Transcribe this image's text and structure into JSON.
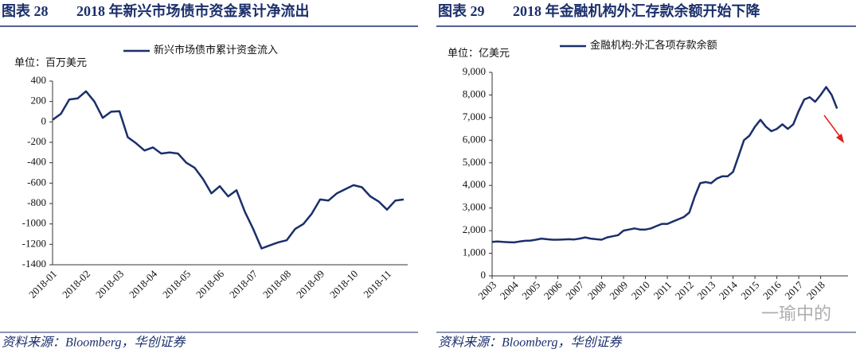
{
  "watermark": "一瑜中的",
  "chart_data": [
    {
      "type": "line",
      "figure_label": "图表 28",
      "title": "2018 年新兴市场债市资金累计净流出",
      "unit_label": "单位：百万美元",
      "source": "资料来源：Bloomberg，华创证券",
      "categories": [
        "2018-01",
        null,
        null,
        null,
        "2018-02",
        null,
        null,
        null,
        "2018-03",
        null,
        null,
        null,
        "2018-04",
        null,
        null,
        null,
        "2018-05",
        null,
        null,
        null,
        "2018-06",
        null,
        null,
        null,
        "2018-07",
        null,
        null,
        null,
        "2018-08",
        null,
        null,
        null,
        "2018-09",
        null,
        null,
        null,
        "2018-10",
        null,
        null,
        null,
        "2018-11",
        null,
        null
      ],
      "series": [
        {
          "name": "新兴市场债市累计资金流入",
          "color": "#1b2f6b",
          "values": [
            20,
            80,
            220,
            230,
            300,
            200,
            40,
            100,
            105,
            -150,
            -210,
            -280,
            -250,
            -310,
            -300,
            -310,
            -400,
            -450,
            -560,
            -700,
            -630,
            -730,
            -670,
            -880,
            -1050,
            -1240,
            -1210,
            -1180,
            -1160,
            -1050,
            -1000,
            -900,
            -760,
            -770,
            -700,
            -660,
            -620,
            -640,
            -730,
            -780,
            -860,
            -770,
            -760
          ]
        }
      ],
      "ylim": [
        -1400,
        400
      ],
      "yticks": [
        -1400,
        -1200,
        -1000,
        -800,
        -600,
        -400,
        -200,
        0,
        200,
        400
      ]
    },
    {
      "type": "line",
      "figure_label": "图表 29",
      "title": "2018 年金融机构外汇存款余额开始下降",
      "unit_label": "单位：亿美元",
      "source": "资料来源：Bloomberg，华创证券",
      "x": [
        2003,
        2003.25,
        2003.5,
        2003.75,
        2004,
        2004.25,
        2004.5,
        2004.75,
        2005,
        2005.25,
        2005.5,
        2005.75,
        2006,
        2006.25,
        2006.5,
        2006.75,
        2007,
        2007.25,
        2007.5,
        2007.75,
        2008,
        2008.25,
        2008.5,
        2008.75,
        2009,
        2009.25,
        2009.5,
        2009.75,
        2010,
        2010.25,
        2010.5,
        2010.75,
        2011,
        2011.25,
        2011.5,
        2011.75,
        2012,
        2012.25,
        2012.5,
        2012.75,
        2013,
        2013.25,
        2013.5,
        2013.75,
        2014,
        2014.25,
        2014.5,
        2014.75,
        2015,
        2015.25,
        2015.5,
        2015.75,
        2016,
        2016.25,
        2016.5,
        2016.75,
        2017,
        2017.25,
        2017.5,
        2017.75,
        2018,
        2018.25,
        2018.5,
        2018.75
      ],
      "series": [
        {
          "name": "金融机构:外汇各项存款余额",
          "color": "#1b2f6b",
          "values": [
            1500,
            1520,
            1500,
            1490,
            1480,
            1520,
            1550,
            1560,
            1600,
            1650,
            1620,
            1600,
            1600,
            1610,
            1620,
            1610,
            1650,
            1700,
            1650,
            1620,
            1600,
            1700,
            1750,
            1800,
            2000,
            2050,
            2100,
            2050,
            2050,
            2100,
            2200,
            2300,
            2300,
            2400,
            2500,
            2600,
            2800,
            3500,
            4100,
            4150,
            4100,
            4300,
            4400,
            4400,
            4600,
            5300,
            6000,
            6200,
            6600,
            6900,
            6600,
            6400,
            6500,
            6700,
            6500,
            6700,
            7300,
            7800,
            7900,
            7700,
            8000,
            8350,
            8000,
            7400
          ]
        }
      ],
      "xlim": [
        2003,
        2019.25
      ],
      "xticks": [
        2003,
        2004,
        2005,
        2006,
        2007,
        2008,
        2009,
        2010,
        2011,
        2012,
        2013,
        2014,
        2015,
        2016,
        2017,
        2018
      ],
      "ylim": [
        0,
        9000
      ],
      "yticks": [
        0,
        {
          "value": 1000,
          "label": "1,000"
        },
        {
          "value": 2000,
          "label": "2,000"
        },
        {
          "value": 3000,
          "label": "3,000"
        },
        {
          "value": 4000,
          "label": "4,000"
        },
        {
          "value": 5000,
          "label": "5,000"
        },
        {
          "value": 6000,
          "label": "6,000"
        },
        {
          "value": 7000,
          "label": "7,000"
        },
        {
          "value": 8000,
          "label": "8,000"
        },
        {
          "value": 9000,
          "label": "9,000"
        }
      ]
    }
  ]
}
